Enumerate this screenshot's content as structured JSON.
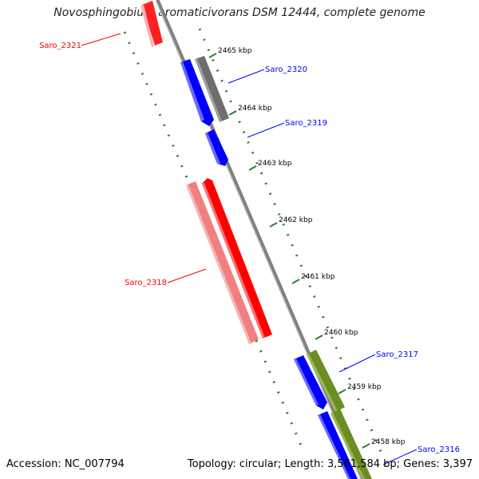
{
  "title": "Novosphingobium aromaticivorans DSM 12444, complete genome",
  "footer": {
    "accession": "Accession: NC_007794",
    "summary": "Topology: circular; Length: 3,561,584 bp; Genes: 3,397"
  },
  "ticks": [
    {
      "label": "2465 kbp"
    },
    {
      "label": "2464 kbp"
    },
    {
      "label": "2463 kbp"
    },
    {
      "label": "2462 kbp"
    },
    {
      "label": "2461 kbp"
    },
    {
      "label": "2460 kbp"
    },
    {
      "label": "2459 kbp"
    },
    {
      "label": "2458 kbp"
    }
  ],
  "genes": [
    {
      "label": "Saro_2321",
      "color": "#ff0000"
    },
    {
      "label": "Saro_2320",
      "color": "#0000ff"
    },
    {
      "label": "Saro_2319",
      "color": "#0000ff"
    },
    {
      "label": "Saro_2318",
      "color": "#ff0000"
    },
    {
      "label": "Saro_2317",
      "color": "#0000ff"
    },
    {
      "label": "Saro_2316",
      "color": "#0000ff"
    }
  ],
  "colors": {
    "backbone": "#808080",
    "cds_forward": "#0000ff",
    "cds_reverse": "#ff0000",
    "rna_pink": "#f08080",
    "orf_gray": "#707070",
    "orf_green": "#6b8e23",
    "tick": "#2e7d32"
  }
}
